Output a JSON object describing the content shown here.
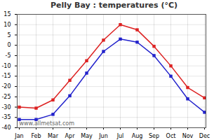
{
  "chart_data": {
    "type": "line",
    "title": "Pelly Bay : temperatures (°C)",
    "categories": [
      "Jan",
      "Feb",
      "Mar",
      "Apr",
      "May",
      "Jun",
      "Jul",
      "Aug",
      "Sep",
      "Oct",
      "Nov",
      "Dec"
    ],
    "series": [
      {
        "color": "#dd2222",
        "marker": "square",
        "values": [
          -30,
          -30.5,
          -26.5,
          -17,
          -7.5,
          2.5,
          10,
          7.5,
          -0.5,
          -10,
          -20.5,
          -25.5
        ]
      },
      {
        "color": "#2222cc",
        "marker": "square",
        "values": [
          -36,
          -36,
          -33.5,
          -24.5,
          -13.5,
          -3,
          3,
          1.5,
          -5,
          -15,
          -26,
          -32.5
        ]
      }
    ],
    "ylim": [
      -40,
      15
    ],
    "yticks": [
      -40,
      -35,
      -30,
      -25,
      -20,
      -15,
      -10,
      -5,
      0,
      5,
      10,
      15
    ],
    "grid": true,
    "annotation": "www.allmetsat.com"
  }
}
